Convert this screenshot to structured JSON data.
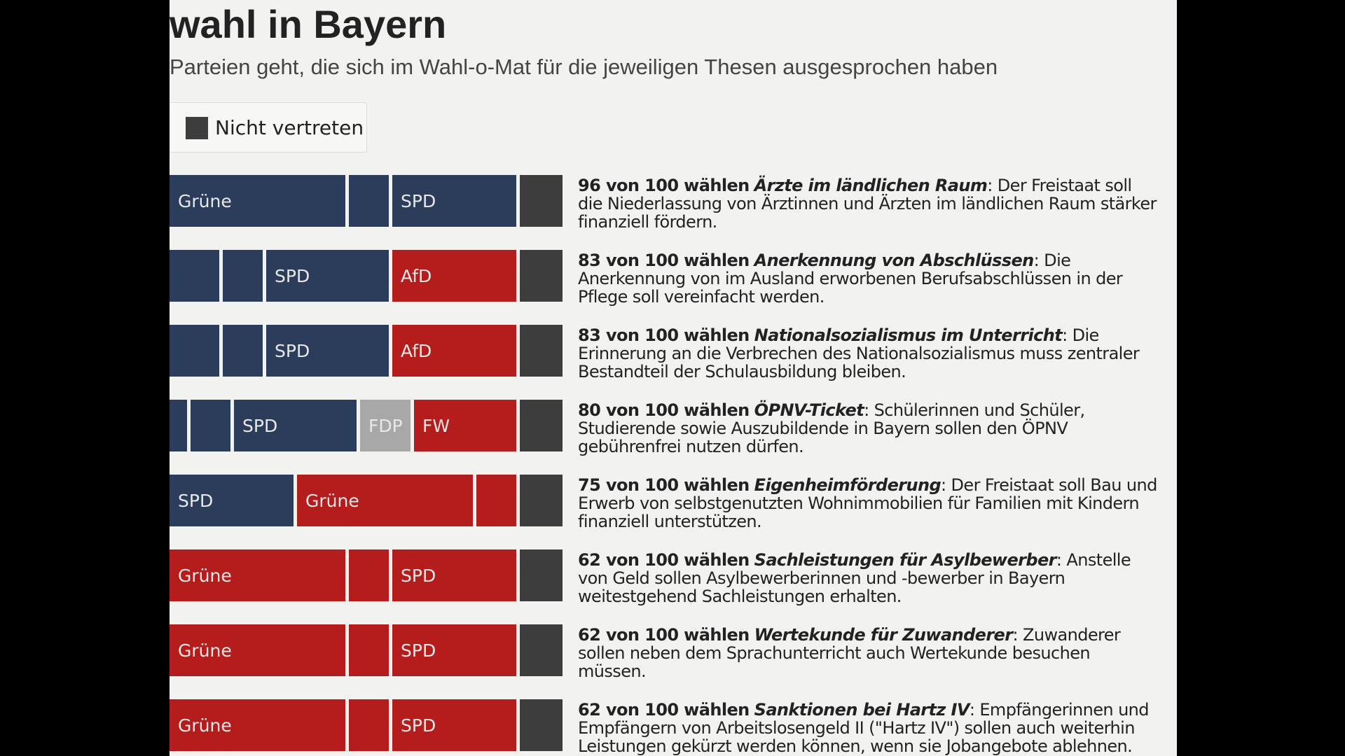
{
  "title": "wahl in Bayern",
  "subtitle": "Parteien geht, die sich im Wahl-o-Mat für die jeweiligen Thesen ausgesprochen haben",
  "legend": {
    "label": "Nicht vertreten",
    "color": "#3d3d3d"
  },
  "colors": {
    "blue": "#2b3d5b",
    "red": "#b51d1d",
    "gray": "#a8a8a8",
    "dark": "#3d3d3d"
  },
  "chart_data": {
    "type": "bar",
    "stacked": true,
    "rows": [
      {
        "lead": "96 von 100 wählen",
        "topic": "Ärzte im ländlichen Raum",
        "text": ": Der Freistaat soll die Niederlassung von Ärztinnen und Ärzten im ländlichen Raum stärker finanziell fördern.",
        "segments": [
          {
            "label": "Grüne",
            "color": "blue",
            "start": 0,
            "end": 256
          },
          {
            "label": "",
            "color": "blue",
            "start": 256,
            "end": 318
          },
          {
            "label": "SPD",
            "color": "blue",
            "start": 318,
            "end": 500
          },
          {
            "label": "",
            "color": "dark",
            "start": 500,
            "end": 566
          }
        ]
      },
      {
        "lead": "83 von 100 wählen",
        "topic": "Anerkennung von Abschlüssen",
        "text": ": Die Anerkennung von im Ausland erworbenen Berufsabschlüssen in der Pflege soll vereinfacht werden.",
        "segments": [
          {
            "label": "",
            "color": "blue",
            "start": 0,
            "end": 76
          },
          {
            "label": "",
            "color": "blue",
            "start": 76,
            "end": 138
          },
          {
            "label": "SPD",
            "color": "blue",
            "start": 138,
            "end": 318
          },
          {
            "label": "AfD",
            "color": "red",
            "start": 318,
            "end": 500
          },
          {
            "label": "",
            "color": "dark",
            "start": 500,
            "end": 566
          }
        ]
      },
      {
        "lead": "83 von 100 wählen",
        "topic": "Nationalsozialismus im Unterricht",
        "text": ": Die Erinnerung an die Verbrechen des Nationalsozialismus muss zentraler Bestandteil der Schulausbildung bleiben.",
        "segments": [
          {
            "label": "",
            "color": "blue",
            "start": 0,
            "end": 76
          },
          {
            "label": "",
            "color": "blue",
            "start": 76,
            "end": 138
          },
          {
            "label": "SPD",
            "color": "blue",
            "start": 138,
            "end": 318
          },
          {
            "label": "AfD",
            "color": "red",
            "start": 318,
            "end": 500
          },
          {
            "label": "",
            "color": "dark",
            "start": 500,
            "end": 566
          }
        ]
      },
      {
        "lead": "80 von 100 wählen",
        "topic": "ÖPNV-Ticket",
        "text": ": Schülerinnen und Schüler, Studierende sowie Auszubildende in Bayern sollen den ÖPNV gebührenfrei nutzen dürfen.",
        "segments": [
          {
            "label": "",
            "color": "blue",
            "start": 0,
            "end": 30
          },
          {
            "label": "",
            "color": "blue",
            "start": 30,
            "end": 92
          },
          {
            "label": "SPD",
            "color": "blue",
            "start": 92,
            "end": 272
          },
          {
            "label": "FDP",
            "color": "gray",
            "start": 272,
            "end": 349
          },
          {
            "label": "FW",
            "color": "red",
            "start": 349,
            "end": 500
          },
          {
            "label": "",
            "color": "dark",
            "start": 500,
            "end": 566
          }
        ]
      },
      {
        "lead": "75 von 100 wählen",
        "topic": "Eigenheimförderung",
        "text": ": Der Freistaat soll Bau und Erwerb von selbstgenutzten Wohnimmobilien für Familien mit Kindern finanziell unterstützen.",
        "segments": [
          {
            "label": "SPD",
            "color": "blue",
            "start": 0,
            "end": 182
          },
          {
            "label": "Grüne",
            "color": "red",
            "start": 182,
            "end": 438
          },
          {
            "label": "",
            "color": "red",
            "start": 438,
            "end": 500
          },
          {
            "label": "",
            "color": "dark",
            "start": 500,
            "end": 566
          }
        ]
      },
      {
        "lead": "62 von 100 wählen",
        "topic": "Sachleistungen für Asylbewerber",
        "text": ": Anstelle von Geld sollen Asylbewerberinnen und -bewerber in Bayern weitestgehend Sachleistungen erhalten.",
        "segments": [
          {
            "label": "Grüne",
            "color": "red",
            "start": 0,
            "end": 256
          },
          {
            "label": "",
            "color": "red",
            "start": 256,
            "end": 318
          },
          {
            "label": "SPD",
            "color": "red",
            "start": 318,
            "end": 500
          },
          {
            "label": "",
            "color": "dark",
            "start": 500,
            "end": 566
          }
        ]
      },
      {
        "lead": "62 von 100 wählen",
        "topic": "Wertekunde für Zuwanderer",
        "text": ": Zuwanderer sollen neben dem Sprachunterricht auch Wertekunde besuchen müssen.",
        "segments": [
          {
            "label": "Grüne",
            "color": "red",
            "start": 0,
            "end": 256
          },
          {
            "label": "",
            "color": "red",
            "start": 256,
            "end": 318
          },
          {
            "label": "SPD",
            "color": "red",
            "start": 318,
            "end": 500
          },
          {
            "label": "",
            "color": "dark",
            "start": 500,
            "end": 566
          }
        ]
      },
      {
        "lead": "62 von 100 wählen",
        "topic": "Sanktionen bei Hartz IV",
        "text": ": Empfängerinnen und Empfängern von Arbeitslosengeld II (\"Hartz IV\") sollen auch weiterhin Leistungen gekürzt werden können, wenn sie Jobangebote ablehnen.",
        "segments": [
          {
            "label": "Grüne",
            "color": "red",
            "start": 0,
            "end": 256
          },
          {
            "label": "",
            "color": "red",
            "start": 256,
            "end": 318
          },
          {
            "label": "SPD",
            "color": "red",
            "start": 318,
            "end": 500
          },
          {
            "label": "",
            "color": "dark",
            "start": 500,
            "end": 566
          }
        ]
      }
    ]
  }
}
